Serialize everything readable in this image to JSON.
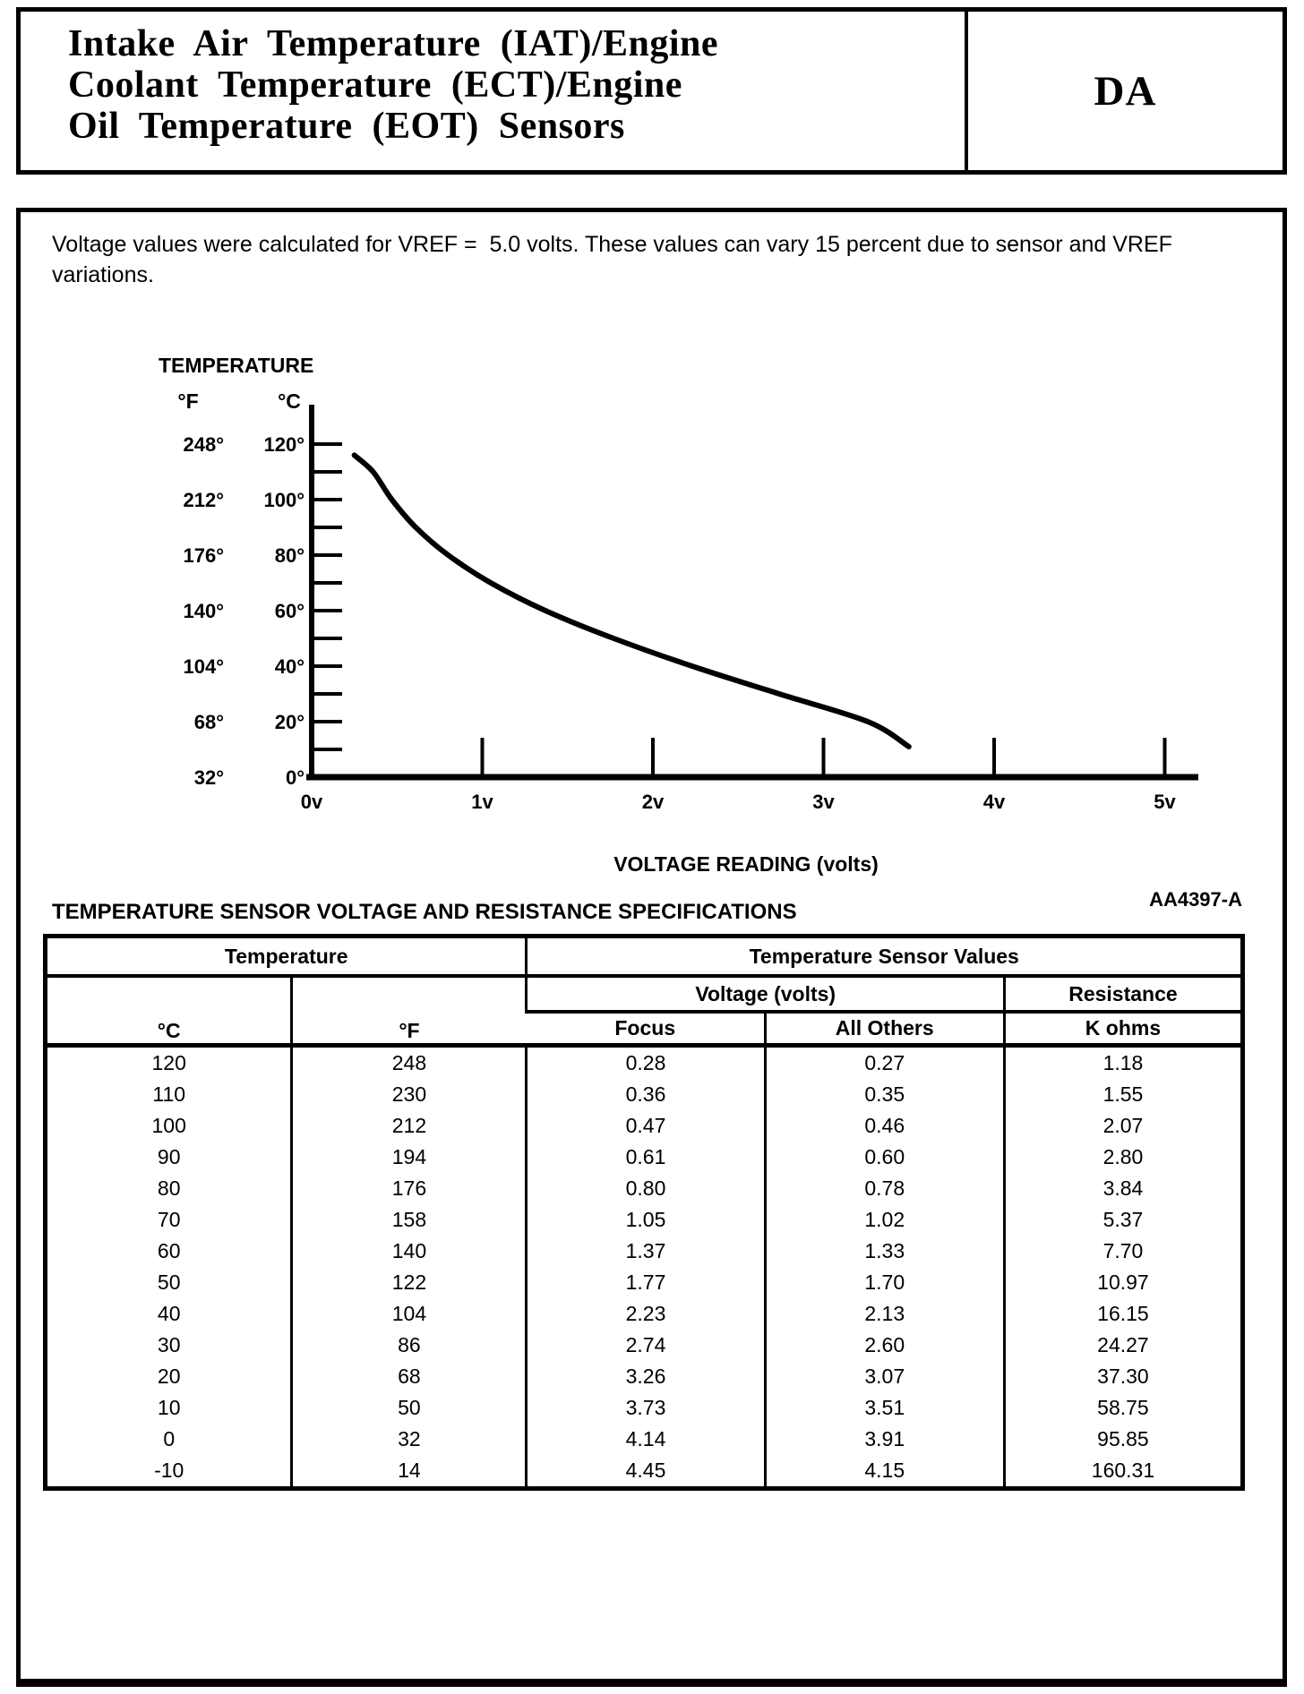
{
  "header": {
    "title_lines": [
      "Intake Air Temperature (IAT)/Engine",
      "Coolant Temperature (ECT)/Engine",
      "Oil Temperature (EOT) Sensors"
    ],
    "section_code": "DA"
  },
  "note": {
    "text": "Voltage values were calculated for VREF =  5.0 volts. These values can vary 15 percent due to sensor and VREF\nvariations."
  },
  "chart_data": {
    "type": "line",
    "title": "TEMPERATURE",
    "xlabel": "VOLTAGE READING (volts)",
    "figure_code": "AA4397-A",
    "grid": false,
    "x_axis": {
      "unit": "volts",
      "lim": [
        0,
        5
      ],
      "ticks": [
        "0v",
        "1v",
        "2v",
        "3v",
        "4v",
        "5v"
      ]
    },
    "y_axis_fahrenheit": {
      "header": "°F",
      "ticks": [
        "248°",
        "212°",
        "176°",
        "140°",
        "104°",
        "68°",
        "32°"
      ]
    },
    "y_axis_celsius": {
      "header": "°C",
      "lim": [
        0,
        125
      ],
      "tick_step": 10,
      "ticks": [
        "120°",
        "100°",
        "80°",
        "60°",
        "40°",
        "20°",
        "0°"
      ]
    },
    "curve": {
      "name": "temperature sensor voltage curve",
      "x_volts": [
        0.25,
        0.36,
        0.47,
        0.61,
        0.8,
        1.05,
        1.37,
        1.77,
        2.23,
        2.74,
        3.26,
        3.5
      ],
      "y_celsius": [
        116,
        110,
        100,
        90,
        80,
        70,
        60,
        50,
        40,
        30,
        20,
        11
      ]
    }
  },
  "spec_table": {
    "title": "TEMPERATURE SENSOR VOLTAGE AND RESISTANCE SPECIFICATIONS",
    "group_headers": {
      "temperature": "Temperature",
      "sensor_values": "Temperature Sensor Values"
    },
    "sub_headers": {
      "voltage": "Voltage (volts)",
      "resistance": "Resistance"
    },
    "columns": [
      "°C",
      "°F",
      "Focus",
      "All Others",
      "K ohms"
    ],
    "rows": [
      [
        "120",
        "248",
        "0.28",
        "0.27",
        "1.18"
      ],
      [
        "110",
        "230",
        "0.36",
        "0.35",
        "1.55"
      ],
      [
        "100",
        "212",
        "0.47",
        "0.46",
        "2.07"
      ],
      [
        "90",
        "194",
        "0.61",
        "0.60",
        "2.80"
      ],
      [
        "80",
        "176",
        "0.80",
        "0.78",
        "3.84"
      ],
      [
        "70",
        "158",
        "1.05",
        "1.02",
        "5.37"
      ],
      [
        "60",
        "140",
        "1.37",
        "1.33",
        "7.70"
      ],
      [
        "50",
        "122",
        "1.77",
        "1.70",
        "10.97"
      ],
      [
        "40",
        "104",
        "2.23",
        "2.13",
        "16.15"
      ],
      [
        "30",
        "86",
        "2.74",
        "2.60",
        "24.27"
      ],
      [
        "20",
        "68",
        "3.26",
        "3.07",
        "37.30"
      ],
      [
        "10",
        "50",
        "3.73",
        "3.51",
        "58.75"
      ],
      [
        "0",
        "32",
        "4.14",
        "3.91",
        "95.85"
      ],
      [
        "-10",
        "14",
        "4.45",
        "4.15",
        "160.31"
      ]
    ]
  }
}
